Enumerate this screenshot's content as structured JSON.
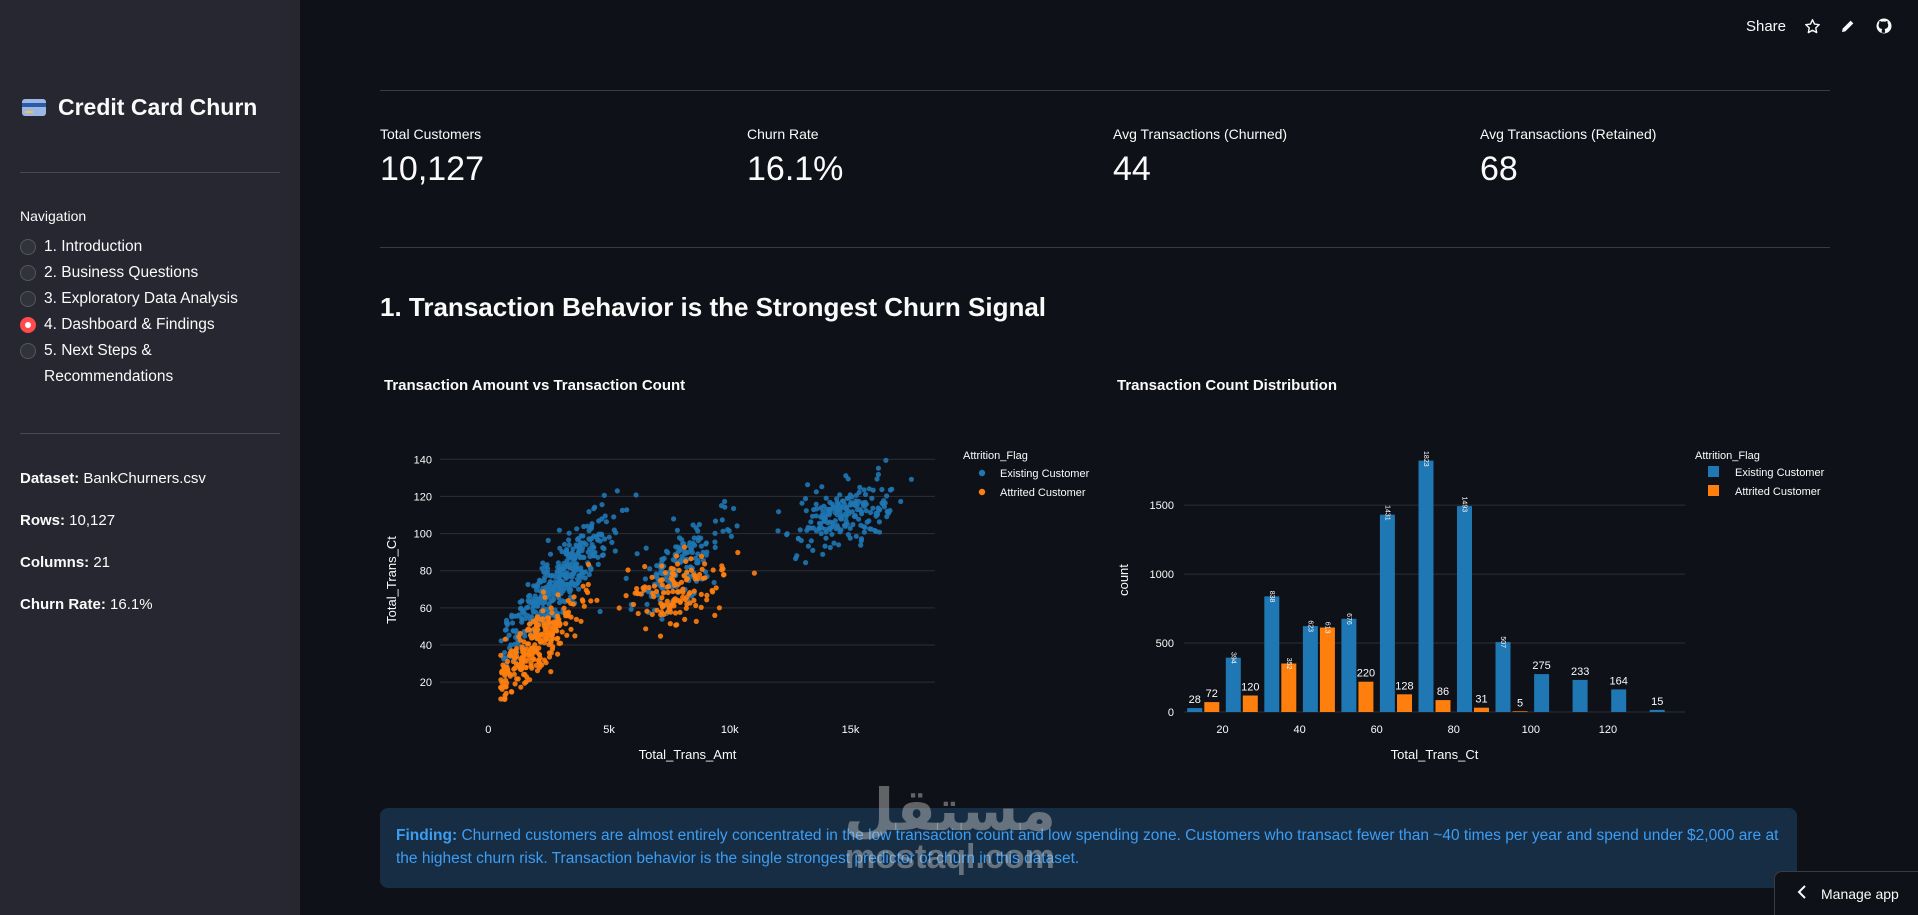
{
  "sidebar": {
    "title": "Credit Card Churn",
    "nav_label": "Navigation",
    "nav_items": [
      {
        "label": "1. Introduction",
        "selected": false
      },
      {
        "label": "2. Business Questions",
        "selected": false
      },
      {
        "label": "3. Exploratory Data Analysis",
        "selected": false
      },
      {
        "label": "4. Dashboard & Findings",
        "selected": true
      },
      {
        "label": "5. Next Steps & Recommendations",
        "selected": false
      }
    ],
    "meta": [
      {
        "key": "Dataset:",
        "value": "BankChurners.csv"
      },
      {
        "key": "Rows:",
        "value": "10,127"
      },
      {
        "key": "Columns:",
        "value": "21"
      },
      {
        "key": "Churn Rate:",
        "value": "16.1%"
      }
    ]
  },
  "topbar": {
    "share_label": "Share"
  },
  "metrics": [
    {
      "label": "Total Customers",
      "value": "10,127"
    },
    {
      "label": "Churn Rate",
      "value": "16.1%"
    },
    {
      "label": "Avg Transactions (Churned)",
      "value": "44"
    },
    {
      "label": "Avg Transactions (Retained)",
      "value": "68"
    }
  ],
  "section_title": "1. Transaction Behavior is the Strongest Churn Signal",
  "colors": {
    "existing": "#1f77b4",
    "attrited": "#ff7f0e"
  },
  "chart_data": [
    {
      "type": "scatter",
      "title": "Transaction Amount vs Transaction Count",
      "xlabel": "Total_Trans_Amt",
      "ylabel": "Total_Trans_Ct",
      "xlim": [
        -2000,
        18500
      ],
      "ylim": [
        5,
        145
      ],
      "xticks": [
        {
          "v": 0,
          "t": "0"
        },
        {
          "v": 5000,
          "t": "5k"
        },
        {
          "v": 10000,
          "t": "10k"
        },
        {
          "v": 15000,
          "t": "15k"
        }
      ],
      "yticks": [
        20,
        40,
        60,
        80,
        100,
        120,
        140
      ],
      "legend_title": "Attrition_Flag",
      "legend_position": "top-right",
      "series": [
        {
          "name": "Existing Customer",
          "color": "#1f77b4",
          "clusters": [
            {
              "cx": 2800,
              "cy": 72,
              "sx": 1100,
              "sy": 18,
              "n": 420,
              "corr": 0.85
            },
            {
              "cx": 8000,
              "cy": 84,
              "sx": 900,
              "sy": 13,
              "n": 160,
              "corr": 0.6
            },
            {
              "cx": 14700,
              "cy": 110,
              "sx": 1100,
              "sy": 9,
              "n": 200,
              "corr": 0.3
            }
          ]
        },
        {
          "name": "Attrited Customer",
          "color": "#ff7f0e",
          "clusters": [
            {
              "cx": 2000,
              "cy": 40,
              "sx": 900,
              "sy": 13,
              "n": 260,
              "corr": 0.8
            },
            {
              "cx": 7800,
              "cy": 70,
              "sx": 1000,
              "sy": 9,
              "n": 130,
              "corr": 0.3
            }
          ]
        }
      ]
    },
    {
      "type": "bar",
      "title": "Transaction Count Distribution",
      "xlabel": "Total_Trans_Ct",
      "ylabel": "count",
      "xlim": [
        10,
        140
      ],
      "ylim": [
        0,
        1900
      ],
      "xticks": [
        20,
        40,
        60,
        80,
        100,
        120
      ],
      "yticks": [
        0,
        500,
        1000,
        1500
      ],
      "legend_title": "Attrition_Flag",
      "legend_position": "top-right",
      "x": [
        15,
        25,
        35,
        45,
        55,
        65,
        75,
        85,
        95,
        105,
        115,
        125,
        135
      ],
      "series": [
        {
          "name": "Existing Customer",
          "color": "#1f77b4",
          "values": [
            28,
            394,
            838,
            623,
            676,
            1431,
            1823,
            1493,
            507,
            275,
            233,
            164,
            15
          ]
        },
        {
          "name": "Attrited Customer",
          "color": "#ff7f0e",
          "values": [
            72,
            120,
            352,
            613,
            220,
            128,
            86,
            31,
            5,
            0,
            0,
            0,
            0
          ]
        }
      ]
    }
  ],
  "finding": {
    "label": "Finding:",
    "text": "Churned customers are almost entirely concentrated in the low transaction count and low spending zone. Customers who transact fewer than ~40 times per year and spend under $2,000 are at the highest churn risk. Transaction behavior is the single strongest predictor of churn in this dataset."
  },
  "watermark": {
    "top": "مستقل",
    "bottom": "mostaql.com"
  },
  "manage_app_label": "Manage app"
}
